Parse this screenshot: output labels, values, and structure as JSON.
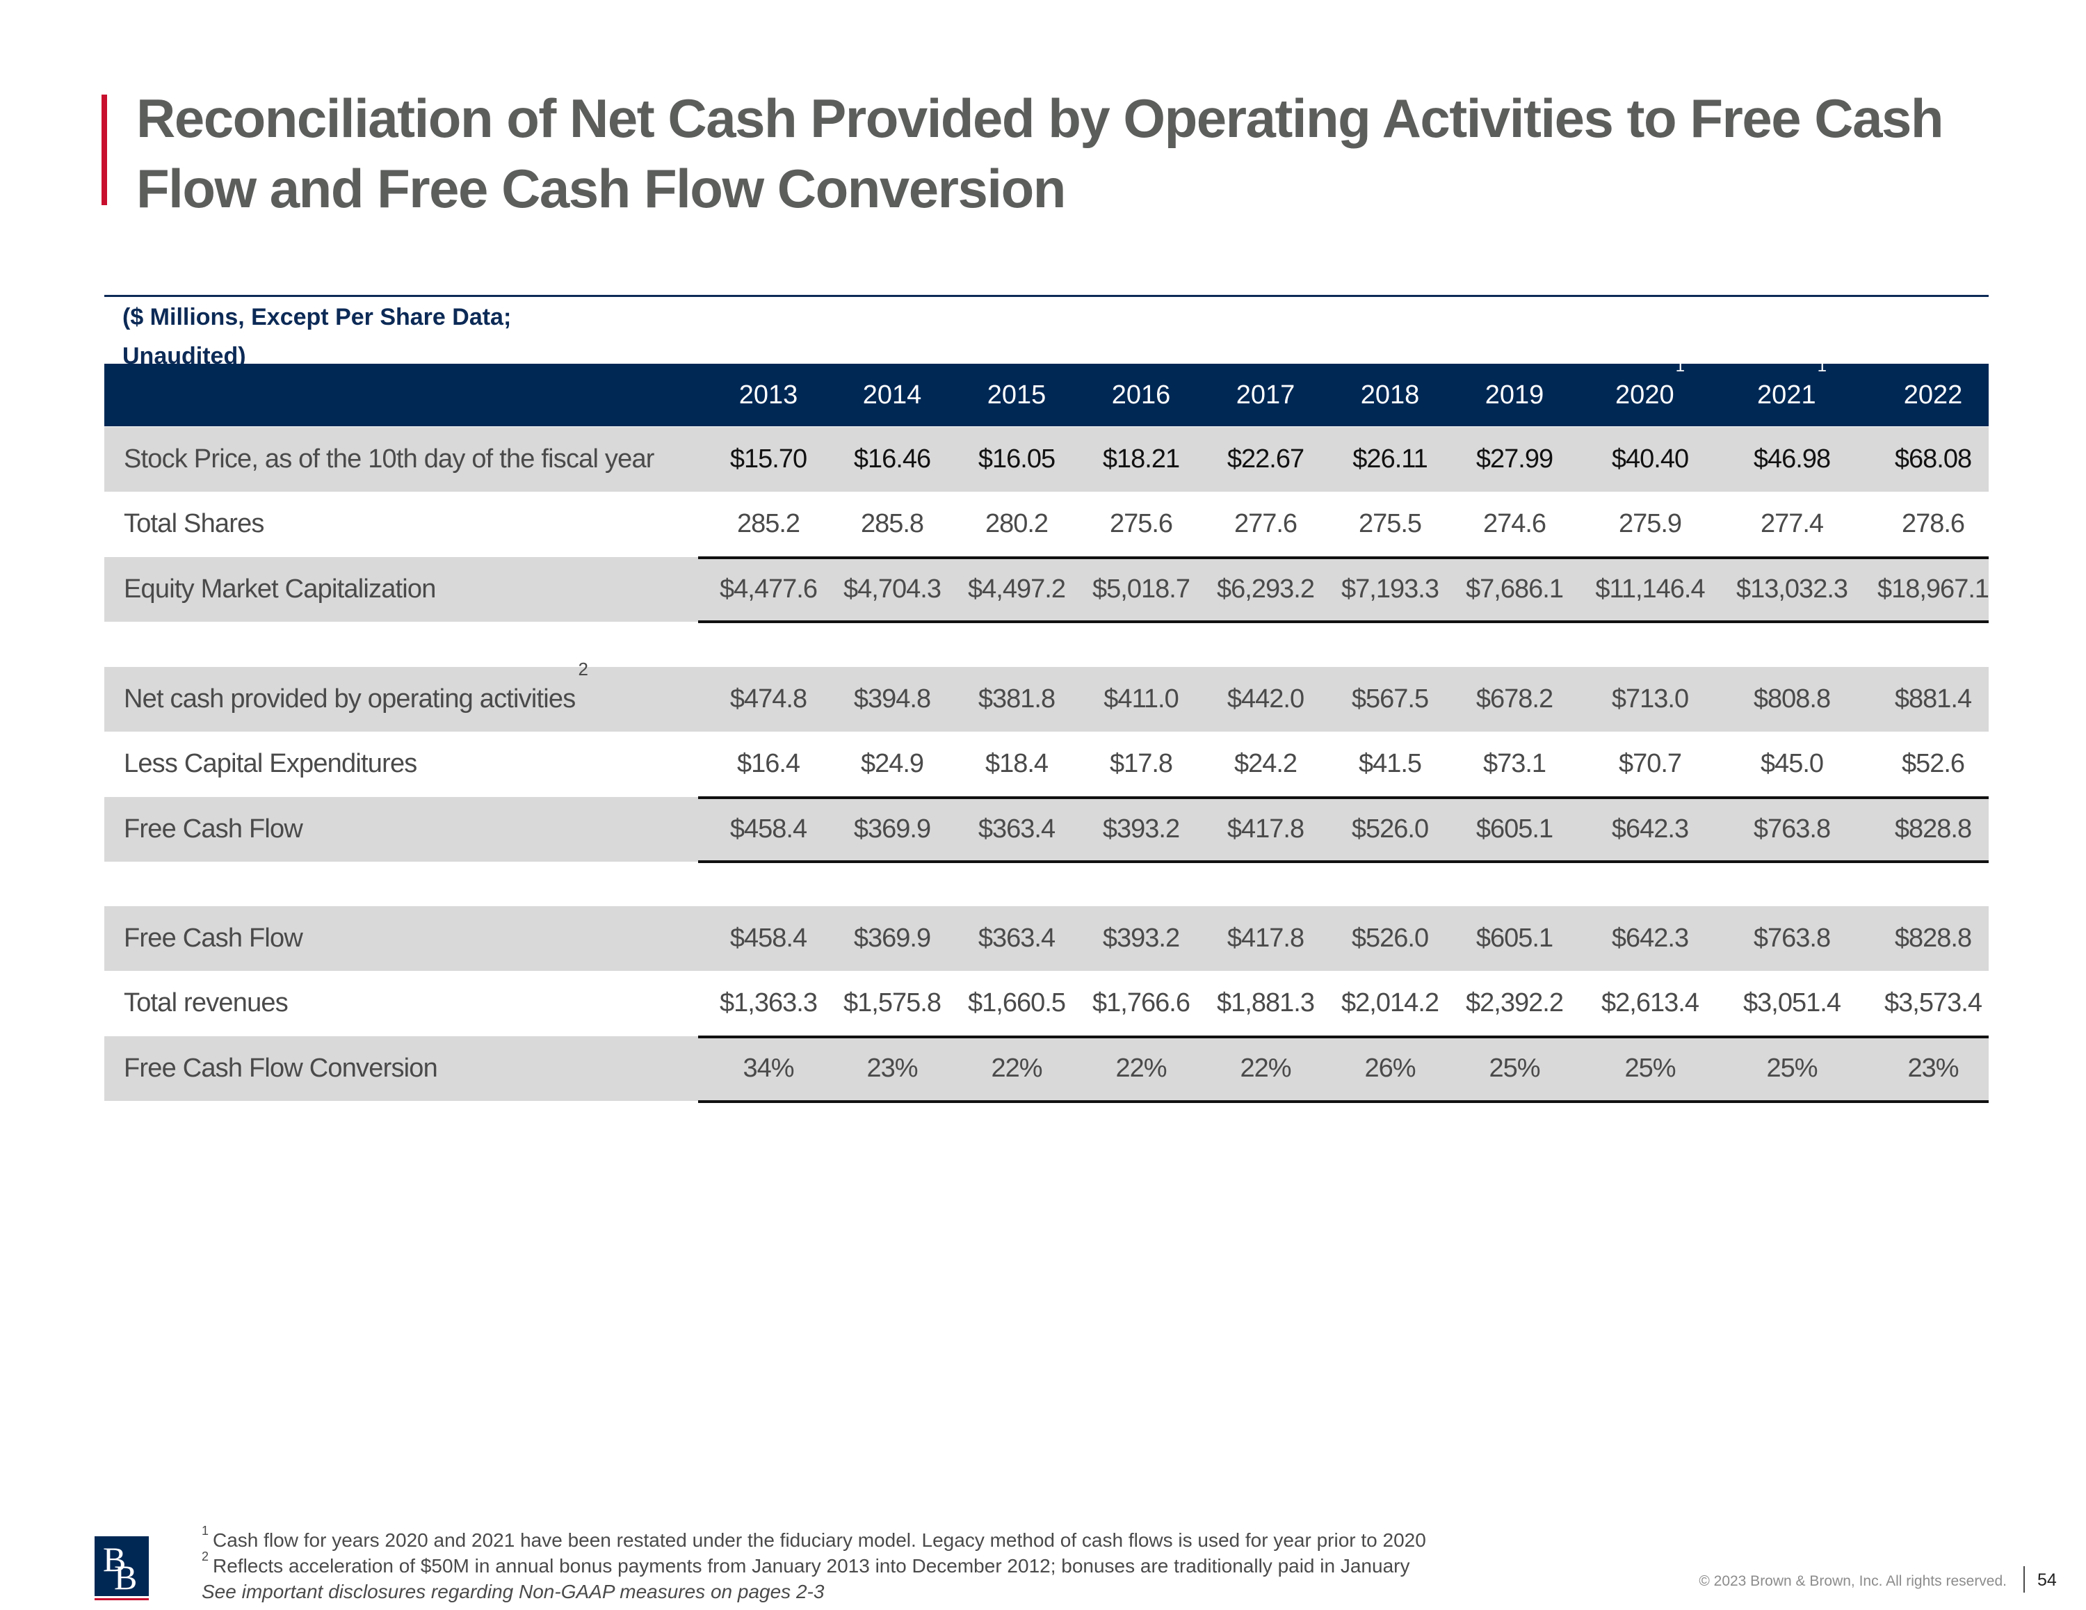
{
  "title": "Reconciliation of Net Cash Provided by Operating Activities to Free Cash Flow and Free Cash Flow Conversion",
  "units_note_line1": "($ Millions, Except Per Share Data;",
  "units_note_line2": "Unaudited)",
  "years": [
    {
      "year": "2013",
      "sup": ""
    },
    {
      "year": "2014",
      "sup": ""
    },
    {
      "year": "2015",
      "sup": ""
    },
    {
      "year": "2016",
      "sup": ""
    },
    {
      "year": "2017",
      "sup": ""
    },
    {
      "year": "2018",
      "sup": ""
    },
    {
      "year": "2019",
      "sup": ""
    },
    {
      "year": "2020",
      "sup": "1"
    },
    {
      "year": "2021",
      "sup": "1"
    },
    {
      "year": "2022",
      "sup": ""
    }
  ],
  "rows": [
    {
      "label": "Stock Price, as of the 10th day of the fiscal year",
      "sup": "",
      "values": [
        "$15.70",
        "$16.46",
        "$16.05",
        "$18.21",
        "$22.67",
        "$26.11",
        "$27.99",
        "$40.40",
        "$46.98",
        "$68.08"
      ]
    },
    {
      "label": "Total Shares",
      "sup": "",
      "values": [
        "285.2",
        "285.8",
        "280.2",
        "275.6",
        "277.6",
        "275.5",
        "274.6",
        "275.9",
        "277.4",
        "278.6"
      ]
    },
    {
      "label": "Equity Market Capitalization",
      "sup": "",
      "values": [
        "$4,477.6",
        "$4,704.3",
        "$4,497.2",
        "$5,018.7",
        "$6,293.2",
        "$7,193.3",
        "$7,686.1",
        "$11,146.4",
        "$13,032.3",
        "$18,967.1"
      ]
    },
    {
      "label": "Net cash provided by operating activities",
      "sup": "2",
      "values": [
        "$474.8",
        "$394.8",
        "$381.8",
        "$411.0",
        "$442.0",
        "$567.5",
        "$678.2",
        "$713.0",
        "$808.8",
        "$881.4"
      ]
    },
    {
      "label": "Less Capital Expenditures",
      "sup": "",
      "values": [
        "$16.4",
        "$24.9",
        "$18.4",
        "$17.8",
        "$24.2",
        "$41.5",
        "$73.1",
        "$70.7",
        "$45.0",
        "$52.6"
      ]
    },
    {
      "label": "Free Cash Flow",
      "sup": "",
      "values": [
        "$458.4",
        "$369.9",
        "$363.4",
        "$393.2",
        "$417.8",
        "$526.0",
        "$605.1",
        "$642.3",
        "$763.8",
        "$828.8"
      ]
    },
    {
      "label": "Free Cash Flow",
      "sup": "",
      "values": [
        "$458.4",
        "$369.9",
        "$363.4",
        "$393.2",
        "$417.8",
        "$526.0",
        "$605.1",
        "$642.3",
        "$763.8",
        "$828.8"
      ]
    },
    {
      "label": "Total revenues",
      "sup": "",
      "values": [
        "$1,363.3",
        "$1,575.8",
        "$1,660.5",
        "$1,766.6",
        "$1,881.3",
        "$2,014.2",
        "$2,392.2",
        "$2,613.4",
        "$3,051.4",
        "$3,573.4"
      ]
    },
    {
      "label": "Free Cash Flow Conversion",
      "sup": "",
      "values": [
        "34%",
        "23%",
        "22%",
        "22%",
        "22%",
        "26%",
        "25%",
        "25%",
        "25%",
        "23%"
      ]
    }
  ],
  "footnotes": [
    {
      "marker": "1",
      "text": "Cash flow for years 2020 and 2021 have been restated under the fiduciary model. Legacy method of cash flows is used for year prior to 2020"
    },
    {
      "marker": "2",
      "text": "Reflects acceleration of $50M in annual bonus payments from January 2013 into December 2012; bonuses are traditionally paid in January"
    }
  ],
  "disclosure": "See important disclosures regarding Non-GAAP measures on pages 2-3",
  "logo_letter_1": "B",
  "logo_letter_2": "B",
  "copyright": "© 2023 Brown & Brown, Inc. All rights reserved.",
  "page_number": "54",
  "colors": {
    "accent_red": "#c8102e",
    "header_navy": "#002855",
    "row_shade": "#d9d9d9",
    "title_gray": "#5c5e5c"
  }
}
